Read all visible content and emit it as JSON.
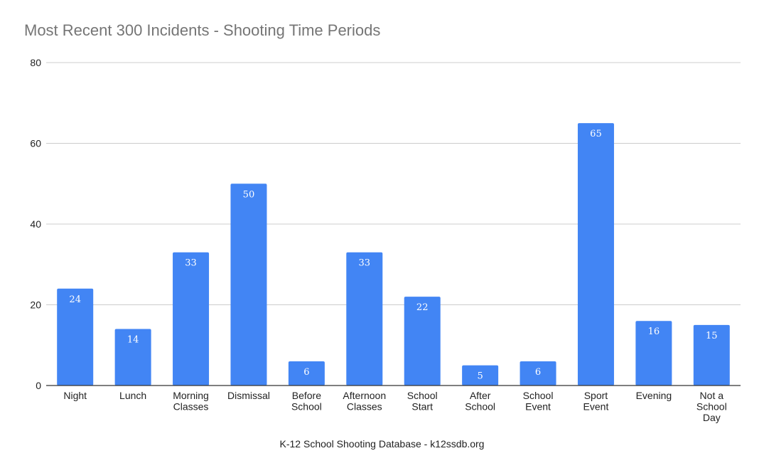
{
  "chart_data": {
    "type": "bar",
    "title": "Most Recent 300 Incidents - Shooting Time Periods",
    "xlabel": "K-12 School Shooting Database - k12ssdb.org",
    "ylabel": "",
    "ylim": [
      0,
      80
    ],
    "yticks": [
      0,
      20,
      40,
      60,
      80
    ],
    "grid": true,
    "categories": [
      [
        "Night"
      ],
      [
        "Lunch"
      ],
      [
        "Morning",
        "Classes"
      ],
      [
        "Dismissal"
      ],
      [
        "Before",
        "School"
      ],
      [
        "Afternoon",
        "Classes"
      ],
      [
        "School",
        "Start"
      ],
      [
        "After",
        "School"
      ],
      [
        "School",
        "Event"
      ],
      [
        "Sport",
        "Event"
      ],
      [
        "Evening"
      ],
      [
        "Not a",
        "School",
        "Day"
      ]
    ],
    "values": [
      24,
      14,
      33,
      50,
      6,
      33,
      22,
      5,
      6,
      65,
      16,
      15
    ],
    "bar_color": "#4285f4",
    "grid_color": "#cccccc",
    "axis_color": "#333333"
  }
}
